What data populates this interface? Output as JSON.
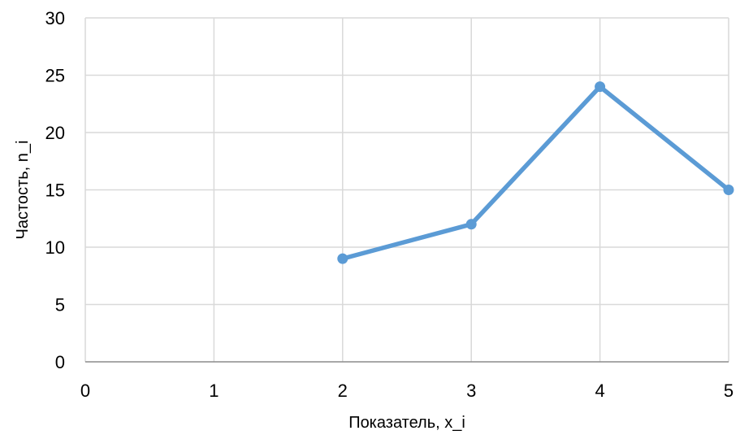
{
  "chart_data": {
    "type": "line",
    "title": "",
    "xlabel": "Показатель, x_i",
    "ylabel": "Частость, n_i",
    "x": [
      2,
      3,
      4,
      5
    ],
    "series": [
      {
        "values": [
          9,
          12,
          24,
          15
        ],
        "color": "#5b9bd5"
      }
    ],
    "xlim": [
      0,
      5
    ],
    "ylim": [
      0,
      30
    ],
    "xticks": [
      "0",
      "1",
      "2",
      "3",
      "4",
      "5"
    ],
    "yticks": [
      "0",
      "5",
      "10",
      "15",
      "20",
      "25",
      "30"
    ],
    "grid": true,
    "legend": "none"
  }
}
